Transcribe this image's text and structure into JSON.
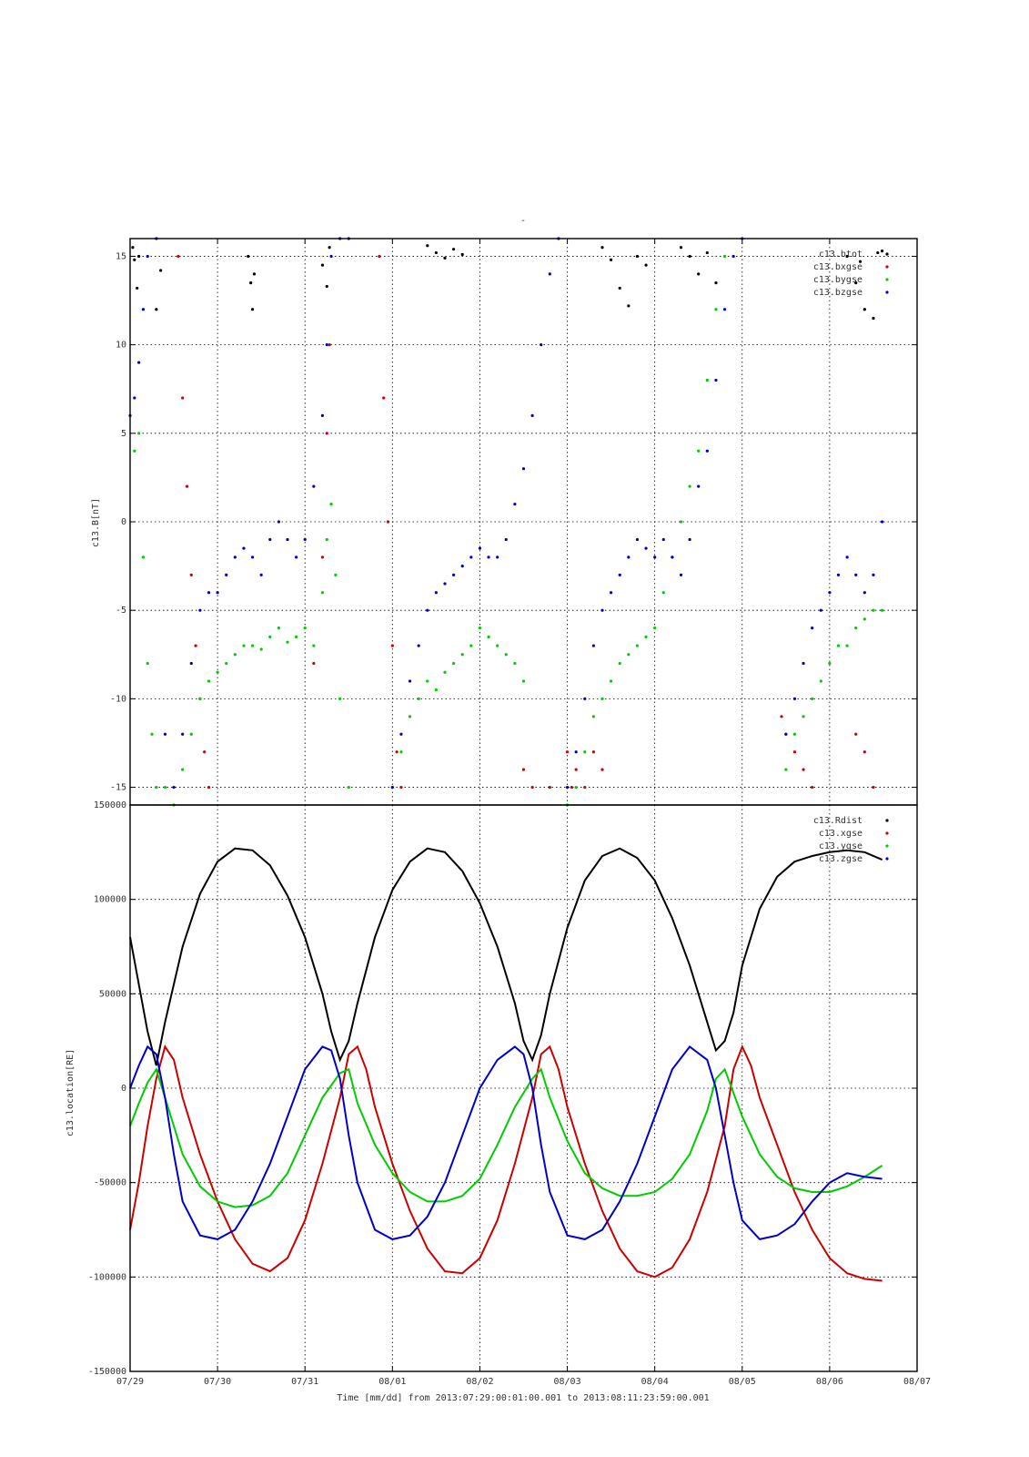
{
  "title_mark": "-",
  "xlabel": "Time [mm/dd]  from 2013:07:29:00:01:00.001  to  2013:08:11:23:59:00.001",
  "x_ticks": [
    "07/29",
    "07/30",
    "07/31",
    "08/01",
    "08/02",
    "08/03",
    "08/04",
    "08/05",
    "08/06",
    "08/07"
  ],
  "colors": {
    "black": "#000000",
    "red": "#cc0000",
    "green": "#00cc00",
    "blue": "#0000cc"
  },
  "chart_data": [
    {
      "type": "scatter",
      "ylabel": "c13.B[nT]",
      "ylim": [
        -16,
        16
      ],
      "xlim_days": [
        0,
        9
      ],
      "y_ticks": [
        -15,
        -10,
        -5,
        0,
        5,
        10,
        15
      ],
      "grid": true,
      "legend_position": "top-right",
      "series": [
        {
          "name": "c13.btot",
          "color": "#000000",
          "x": [
            0.03,
            0.05,
            0.08,
            0.1,
            0.3,
            0.35,
            1.35,
            1.38,
            1.4,
            1.42,
            2.2,
            2.25,
            2.28,
            3.4,
            3.5,
            3.6,
            3.7,
            3.8,
            5.4,
            5.5,
            5.6,
            5.7,
            5.8,
            5.9,
            6.3,
            6.4,
            6.5,
            6.6,
            6.7,
            8.2,
            8.3,
            8.35,
            8.4,
            8.5,
            8.55,
            8.6
          ],
          "y": [
            15.5,
            14.8,
            13.2,
            15,
            12,
            14.2,
            15,
            13.5,
            12,
            14,
            14.5,
            13.3,
            15.5,
            15.6,
            15.2,
            14.9,
            15.4,
            15.1,
            15.5,
            14.8,
            13.2,
            12.2,
            15,
            14.5,
            15.5,
            15,
            14,
            15.2,
            13.5,
            15,
            13.5,
            14.7,
            12,
            11.5,
            15.2,
            15.3
          ]
        },
        {
          "name": "c13.bxgse",
          "color": "#cc0000",
          "x": [
            0.55,
            0.6,
            0.65,
            0.7,
            0.75,
            0.8,
            0.85,
            0.9,
            2.1,
            2.2,
            2.25,
            2.28,
            2.85,
            2.9,
            2.95,
            3.0,
            3.05,
            3.1,
            4.5,
            4.6,
            4.8,
            5.0,
            5.05,
            5.1,
            5.2,
            5.3,
            5.4,
            7.45,
            7.5,
            7.6,
            7.7,
            7.8,
            8.3,
            8.4,
            8.5
          ],
          "y": [
            15,
            7,
            2,
            -3,
            -7,
            -10,
            -13,
            -15,
            -8,
            -2,
            5,
            10,
            15,
            7,
            0,
            -7,
            -13,
            -15,
            -14,
            -15,
            -15,
            -13,
            -15,
            -14,
            -15,
            -13,
            -14,
            -11,
            -12,
            -13,
            -14,
            -15,
            -12,
            -13,
            -15
          ]
        },
        {
          "name": "c13.bygse",
          "color": "#00cc00",
          "x": [
            0.05,
            0.1,
            0.15,
            0.2,
            0.25,
            0.3,
            0.4,
            0.5,
            0.6,
            0.7,
            0.8,
            0.9,
            1.0,
            1.1,
            1.2,
            1.3,
            1.4,
            1.5,
            1.6,
            1.7,
            1.8,
            1.9,
            2.0,
            2.1,
            2.2,
            2.25,
            2.3,
            2.35,
            2.4,
            2.5,
            3.0,
            3.1,
            3.2,
            3.3,
            3.4,
            3.5,
            3.6,
            3.7,
            3.8,
            3.9,
            4.0,
            4.1,
            4.2,
            4.3,
            4.4,
            4.5,
            5.0,
            5.1,
            5.2,
            5.3,
            5.4,
            5.5,
            5.6,
            5.7,
            5.8,
            5.9,
            6.0,
            6.1,
            6.2,
            6.3,
            6.4,
            6.5,
            6.6,
            6.7,
            6.8,
            7.5,
            7.6,
            7.7,
            7.8,
            7.9,
            8.0,
            8.1,
            8.2,
            8.3,
            8.4,
            8.5,
            8.6
          ],
          "y": [
            4,
            5,
            -2,
            -8,
            -12,
            -15,
            -15,
            -16,
            -14,
            -12,
            -10,
            -9,
            -8.5,
            -8,
            -7.5,
            -7,
            -7,
            -7.2,
            -6.5,
            -6,
            -6.8,
            -6.5,
            -6,
            -7,
            -4,
            -1,
            1,
            -3,
            -10,
            -15,
            -15,
            -13,
            -11,
            -10,
            -9,
            -9.5,
            -8.5,
            -8,
            -7.5,
            -7,
            -6,
            -6.5,
            -7,
            -7.5,
            -8,
            -9,
            -16,
            -15,
            -13,
            -11,
            -10,
            -9,
            -8,
            -7.5,
            -7,
            -6.5,
            -6,
            -4,
            -2,
            0,
            2,
            4,
            8,
            12,
            15,
            -14,
            -12,
            -11,
            -10,
            -9,
            -8,
            -7,
            -7,
            -6,
            -5.5,
            -5,
            -5
          ]
        },
        {
          "name": "c13.bzgse",
          "color": "#0000cc",
          "x": [
            0.0,
            0.05,
            0.1,
            0.15,
            0.2,
            0.3,
            0.4,
            0.5,
            0.6,
            0.7,
            0.8,
            0.9,
            1.0,
            1.1,
            1.2,
            1.3,
            1.4,
            1.5,
            1.6,
            1.7,
            1.8,
            1.9,
            2.0,
            2.1,
            2.2,
            2.25,
            2.3,
            2.4,
            2.5,
            3.0,
            3.1,
            3.2,
            3.3,
            3.4,
            3.5,
            3.6,
            3.7,
            3.8,
            3.9,
            4.0,
            4.1,
            4.2,
            4.3,
            4.4,
            4.5,
            4.6,
            4.7,
            4.8,
            4.9,
            5.0,
            5.1,
            5.2,
            5.3,
            5.4,
            5.5,
            5.6,
            5.7,
            5.8,
            5.9,
            6.0,
            6.1,
            6.2,
            6.3,
            6.4,
            6.5,
            6.6,
            6.7,
            6.8,
            6.9,
            7.0,
            7.5,
            7.6,
            7.7,
            7.8,
            7.9,
            8.0,
            8.1,
            8.2,
            8.3,
            8.4,
            8.5,
            8.6
          ],
          "y": [
            6,
            7,
            9,
            12,
            15,
            16,
            -12,
            -15,
            -12,
            -8,
            -5,
            -4,
            -4,
            -3,
            -2,
            -1.5,
            -2,
            -3,
            -1,
            0,
            -1,
            -2,
            -1,
            2,
            6,
            10,
            15,
            16,
            16,
            -15,
            -12,
            -9,
            -7,
            -5,
            -4,
            -3.5,
            -3,
            -2.5,
            -2,
            -1.5,
            -2,
            -2,
            -1,
            1,
            3,
            6,
            10,
            14,
            16,
            -15,
            -13,
            -10,
            -7,
            -5,
            -4,
            -3,
            -2,
            -1,
            -1.5,
            -2,
            -1,
            -2,
            -3,
            -1,
            2,
            4,
            8,
            12,
            15,
            16,
            -12,
            -10,
            -8,
            -6,
            -5,
            -4,
            -3,
            -2,
            -3,
            -4,
            -3,
            0
          ]
        }
      ]
    },
    {
      "type": "line",
      "ylabel": "c13.location[RE]",
      "ylim": [
        -150000,
        150000
      ],
      "xlim_days": [
        0,
        9
      ],
      "y_ticks": [
        -150000,
        -100000,
        -50000,
        0,
        50000,
        100000,
        150000
      ],
      "grid": true,
      "legend_position": "top-right",
      "series": [
        {
          "name": "c13.Rdist",
          "color": "#000000",
          "x": [
            0,
            0.1,
            0.2,
            0.3,
            0.4,
            0.6,
            0.8,
            1.0,
            1.2,
            1.4,
            1.6,
            1.8,
            2.0,
            2.2,
            2.3,
            2.4,
            2.5,
            2.6,
            2.8,
            3.0,
            3.2,
            3.4,
            3.6,
            3.8,
            4.0,
            4.2,
            4.4,
            4.5,
            4.6,
            4.7,
            4.8,
            5.0,
            5.2,
            5.4,
            5.6,
            5.8,
            6.0,
            6.2,
            6.4,
            6.6,
            6.7,
            6.8,
            6.9,
            7.0,
            7.2,
            7.4,
            7.6,
            7.8,
            8.0,
            8.2,
            8.4,
            8.6
          ],
          "y": [
            80000,
            55000,
            30000,
            12000,
            35000,
            75000,
            103000,
            120000,
            127000,
            126000,
            118000,
            102000,
            80000,
            50000,
            30000,
            15000,
            25000,
            45000,
            80000,
            105000,
            120000,
            127000,
            125000,
            115000,
            98000,
            75000,
            45000,
            25000,
            15000,
            28000,
            50000,
            85000,
            110000,
            123000,
            127000,
            122000,
            110000,
            90000,
            65000,
            35000,
            20000,
            25000,
            40000,
            65000,
            95000,
            112000,
            120000,
            123000,
            125000,
            126000,
            125000,
            121000
          ]
        },
        {
          "name": "c13.xgse",
          "color": "#cc0000",
          "x": [
            0,
            0.1,
            0.2,
            0.3,
            0.4,
            0.5,
            0.6,
            0.8,
            1.0,
            1.2,
            1.4,
            1.6,
            1.8,
            2.0,
            2.2,
            2.4,
            2.5,
            2.6,
            2.7,
            2.8,
            3.0,
            3.2,
            3.4,
            3.6,
            3.8,
            4.0,
            4.2,
            4.4,
            4.6,
            4.7,
            4.8,
            4.9,
            5.0,
            5.2,
            5.4,
            5.6,
            5.8,
            6.0,
            6.2,
            6.4,
            6.6,
            6.8,
            6.9,
            7.0,
            7.1,
            7.2,
            7.4,
            7.6,
            7.8,
            8.0,
            8.2,
            8.4,
            8.6
          ],
          "y": [
            -75000,
            -50000,
            -20000,
            5000,
            22000,
            15000,
            -5000,
            -35000,
            -60000,
            -80000,
            -93000,
            -97000,
            -90000,
            -70000,
            -40000,
            -5000,
            18000,
            22000,
            10000,
            -10000,
            -40000,
            -65000,
            -85000,
            -97000,
            -98000,
            -90000,
            -70000,
            -40000,
            -5000,
            18000,
            22000,
            10000,
            -10000,
            -40000,
            -65000,
            -85000,
            -97000,
            -100000,
            -95000,
            -80000,
            -55000,
            -20000,
            10000,
            22000,
            12000,
            -5000,
            -30000,
            -55000,
            -75000,
            -90000,
            -98000,
            -101000,
            -102000
          ]
        },
        {
          "name": "c13.ygse",
          "color": "#00cc00",
          "x": [
            0,
            0.1,
            0.2,
            0.3,
            0.4,
            0.6,
            0.8,
            1.0,
            1.2,
            1.4,
            1.6,
            1.8,
            2.0,
            2.2,
            2.4,
            2.5,
            2.6,
            2.8,
            3.0,
            3.2,
            3.4,
            3.6,
            3.8,
            4.0,
            4.2,
            4.4,
            4.6,
            4.7,
            4.8,
            5.0,
            5.2,
            5.4,
            5.6,
            5.8,
            6.0,
            6.2,
            6.4,
            6.6,
            6.7,
            6.8,
            7.0,
            7.2,
            7.4,
            7.6,
            7.8,
            8.0,
            8.2,
            8.4,
            8.6
          ],
          "y": [
            -20000,
            -8000,
            3000,
            10000,
            -5000,
            -35000,
            -52000,
            -60000,
            -63000,
            -62000,
            -57000,
            -45000,
            -25000,
            -5000,
            8000,
            10000,
            -8000,
            -30000,
            -45000,
            -55000,
            -60000,
            -60000,
            -57000,
            -48000,
            -30000,
            -10000,
            5000,
            10000,
            -5000,
            -28000,
            -45000,
            -53000,
            -57000,
            -57000,
            -55000,
            -48000,
            -35000,
            -12000,
            5000,
            10000,
            -15000,
            -35000,
            -47000,
            -53000,
            -55000,
            -55000,
            -52000,
            -47000,
            -41000
          ]
        },
        {
          "name": "c13.zgse",
          "color": "#0000cc",
          "x": [
            0,
            0.1,
            0.2,
            0.3,
            0.4,
            0.5,
            0.6,
            0.8,
            1.0,
            1.2,
            1.4,
            1.6,
            1.8,
            2.0,
            2.2,
            2.3,
            2.4,
            2.5,
            2.6,
            2.8,
            3.0,
            3.2,
            3.4,
            3.6,
            3.8,
            4.0,
            4.2,
            4.4,
            4.5,
            4.6,
            4.7,
            4.8,
            5.0,
            5.2,
            5.4,
            5.6,
            5.8,
            6.0,
            6.2,
            6.4,
            6.6,
            6.7,
            6.8,
            6.9,
            7.0,
            7.2,
            7.4,
            7.6,
            7.8,
            8.0,
            8.2,
            8.4,
            8.6
          ],
          "y": [
            0,
            12000,
            22000,
            18000,
            -5000,
            -35000,
            -60000,
            -78000,
            -80000,
            -75000,
            -60000,
            -40000,
            -15000,
            10000,
            22000,
            20000,
            5000,
            -25000,
            -50000,
            -75000,
            -80000,
            -78000,
            -68000,
            -50000,
            -25000,
            0,
            15000,
            22000,
            18000,
            0,
            -30000,
            -55000,
            -78000,
            -80000,
            -75000,
            -60000,
            -40000,
            -15000,
            10000,
            22000,
            15000,
            0,
            -25000,
            -50000,
            -70000,
            -80000,
            -78000,
            -72000,
            -60000,
            -50000,
            -45000,
            -47000,
            -48000
          ]
        }
      ]
    }
  ]
}
